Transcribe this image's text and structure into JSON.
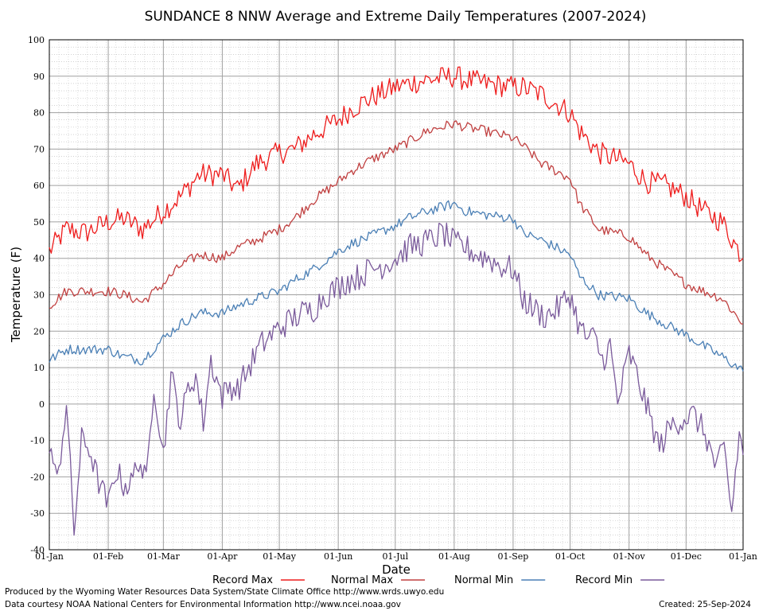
{
  "chart_data": {
    "type": "line",
    "title": "SUNDANCE 8 NNW Average and Extreme Daily Temperatures (2007-2024)",
    "xlabel": "Date",
    "ylabel": "Temperature (F)",
    "ylim": [
      -40,
      100
    ],
    "yticks": [
      -40,
      -30,
      -20,
      -10,
      0,
      10,
      20,
      30,
      40,
      50,
      60,
      70,
      80,
      90,
      100
    ],
    "xlim_day_of_year": [
      1,
      366
    ],
    "xtick_labels": [
      "01-Jan",
      "01-Feb",
      "01-Mar",
      "01-Apr",
      "01-May",
      "01-Jun",
      "01-Jul",
      "01-Aug",
      "01-Sep",
      "01-Oct",
      "01-Nov",
      "01-Dec",
      "01-Jan"
    ],
    "xtick_days": [
      1,
      32,
      61,
      92,
      122,
      153,
      183,
      214,
      245,
      275,
      306,
      336,
      366
    ],
    "grid": true,
    "legend_position": "bottom",
    "series": [
      {
        "name": "Record Max",
        "color": "#ee1c1c",
        "x": [
          1,
          10,
          20,
          32,
          40,
          50,
          61,
          70,
          80,
          92,
          100,
          110,
          122,
          130,
          140,
          153,
          160,
          170,
          183,
          190,
          200,
          214,
          220,
          230,
          245,
          250,
          260,
          275,
          280,
          290,
          306,
          315,
          325,
          336,
          345,
          355,
          366
        ],
        "values": [
          42,
          48,
          47,
          50,
          51,
          48,
          53,
          57,
          63,
          63,
          59,
          66,
          69,
          70,
          74,
          78,
          81,
          84,
          87,
          88,
          89,
          90,
          89,
          88,
          87,
          87,
          85,
          80,
          75,
          69,
          66,
          61,
          60,
          57,
          53,
          50,
          40
        ]
      },
      {
        "name": "Normal Max",
        "color": "#c04040",
        "x": [
          1,
          10,
          20,
          32,
          40,
          50,
          61,
          70,
          80,
          92,
          100,
          110,
          122,
          130,
          140,
          153,
          160,
          170,
          183,
          190,
          200,
          214,
          220,
          230,
          245,
          250,
          260,
          275,
          280,
          290,
          306,
          315,
          325,
          336,
          345,
          355,
          366
        ],
        "values": [
          27,
          31,
          31,
          31,
          30,
          28,
          33,
          38,
          41,
          40,
          43,
          45,
          48,
          51,
          56,
          61,
          64,
          67,
          70,
          72,
          75,
          77,
          76,
          75,
          73,
          71,
          66,
          62,
          55,
          48,
          46,
          41,
          37,
          33,
          31,
          29,
          22
        ]
      },
      {
        "name": "Normal Min",
        "color": "#4a7fb5",
        "x": [
          1,
          10,
          20,
          32,
          40,
          50,
          61,
          70,
          80,
          92,
          100,
          110,
          122,
          130,
          140,
          153,
          160,
          170,
          183,
          190,
          200,
          214,
          220,
          230,
          245,
          250,
          260,
          275,
          280,
          290,
          306,
          315,
          325,
          336,
          345,
          355,
          366
        ],
        "values": [
          12,
          15,
          15,
          15,
          13,
          12,
          18,
          22,
          25,
          25,
          27,
          29,
          31,
          34,
          37,
          42,
          44,
          46,
          49,
          51,
          53,
          55,
          53,
          52,
          51,
          47,
          45,
          41,
          35,
          30,
          29,
          25,
          22,
          19,
          16,
          13,
          9
        ]
      },
      {
        "name": "Record Min",
        "color": "#7a5a9b",
        "x": [
          1,
          5,
          10,
          14,
          18,
          22,
          26,
          32,
          36,
          40,
          44,
          48,
          52,
          56,
          61,
          65,
          70,
          74,
          78,
          82,
          86,
          92,
          96,
          100,
          106,
          112,
          118,
          122,
          128,
          134,
          140,
          146,
          153,
          158,
          164,
          170,
          176,
          183,
          190,
          196,
          202,
          208,
          214,
          220,
          226,
          232,
          238,
          245,
          250,
          256,
          262,
          268,
          275,
          280,
          284,
          288,
          292,
          296,
          300,
          306,
          310,
          316,
          322,
          328,
          334,
          340,
          346,
          352,
          356,
          360,
          364,
          366
        ],
        "values": [
          -10,
          -22,
          0,
          -35,
          -10,
          -12,
          -20,
          -28,
          -18,
          -22,
          -22,
          -15,
          -22,
          6,
          -14,
          8,
          -5,
          4,
          8,
          -5,
          12,
          2,
          5,
          4,
          10,
          16,
          19,
          21,
          23,
          25,
          26,
          30,
          32,
          34,
          35,
          37,
          38,
          40,
          43,
          44,
          45,
          47,
          44,
          43,
          41,
          40,
          38,
          37,
          29,
          26,
          24,
          26,
          30,
          21,
          18,
          18,
          12,
          16,
          0,
          14,
          8,
          -2,
          -12,
          -6,
          -4,
          -3,
          -8,
          -18,
          -12,
          -30,
          -8,
          -14
        ]
      }
    ]
  },
  "footer": {
    "left_line1": "Produced by the Wyoming Water Resources Data System/State Climate Office http://www.wrds.uwyo.edu",
    "left_line2": "Data courtesy NOAA National Centers for Environmental Information http://www.ncei.noaa.gov",
    "right": "Created:  25-Sep-2024"
  }
}
